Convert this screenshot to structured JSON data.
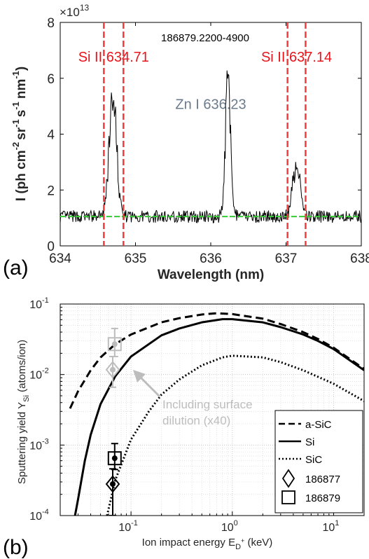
{
  "chart_data": [
    {
      "panel_label": "(a)",
      "type": "line",
      "title": "186879.2200-4900",
      "xlabel": "Wavelength (nm)",
      "ylabel": "I (ph cm",
      "ylabel_sup1": "-2",
      "ylabel_mid1": "sr",
      "ylabel_sup2": "-1",
      "ylabel_mid2": "s",
      "ylabel_sup3": "-1",
      "ylabel_mid3": "nm",
      "ylabel_sup4": "-1",
      "ylabel_end": ")",
      "multiplier_base": "×10",
      "multiplier_exp": "13",
      "xlim": [
        634,
        638
      ],
      "ylim": [
        0,
        8
      ],
      "xticks": [
        "634",
        "635",
        "636",
        "637",
        "638"
      ],
      "yticks": [
        "0",
        "2",
        "4",
        "6",
        "8"
      ],
      "baseline": 1.05,
      "peaks": [
        {
          "center": 634.7,
          "height": 5.4,
          "width": 0.07
        },
        {
          "center": 636.23,
          "height": 5.85,
          "width": 0.05
        },
        {
          "center": 637.14,
          "height": 2.9,
          "width": 0.07
        }
      ],
      "vlines": [
        634.58,
        634.84,
        637.02,
        637.26
      ],
      "annotations": [
        {
          "text": "Si II 634.71",
          "x": 634.71,
          "y": 6.6,
          "color": "#e8141c"
        },
        {
          "text": "Zn I 636.23",
          "x": 636.0,
          "y": 4.9,
          "color": "#6b7b8c"
        },
        {
          "text": "Si II 637.14",
          "x": 637.14,
          "y": 6.6,
          "color": "#e8141c"
        }
      ],
      "colors": {
        "spectrum": "#000000",
        "vline": "#f03c3c",
        "baseline": "#33cc33"
      }
    },
    {
      "panel_label": "(b)",
      "type": "line",
      "xlabel": "Ion impact energy  E",
      "xlabel_sub": "D",
      "xlabel_supsub": "+",
      "xlabel_end": " (keV)",
      "ylabel": "Sputtering yield  Y",
      "ylabel_sub": "Si",
      "ylabel_end": " (atoms/ion)",
      "xscale": "log",
      "yscale": "log",
      "xlim": [
        0.02,
        20
      ],
      "ylim": [
        0.0001,
        0.1
      ],
      "grid": true,
      "legend_position": "bottom-right",
      "xticks": [
        {
          "base": "10",
          "exp": "-1"
        },
        {
          "base": "10",
          "exp": "0"
        },
        {
          "base": "10",
          "exp": "1"
        }
      ],
      "yticks": [
        {
          "base": "10",
          "exp": "-4"
        },
        {
          "base": "10",
          "exp": "-3"
        },
        {
          "base": "10",
          "exp": "-2"
        },
        {
          "base": "10",
          "exp": "-1"
        }
      ],
      "series": [
        {
          "name": "a-SiC",
          "style": "dashed",
          "x": [
            0.025,
            0.03,
            0.04,
            0.05,
            0.07,
            0.1,
            0.2,
            0.3,
            0.5,
            0.7,
            1,
            2,
            3,
            5,
            7,
            10,
            20
          ],
          "y": [
            0.0033,
            0.0058,
            0.0115,
            0.0175,
            0.027,
            0.037,
            0.055,
            0.063,
            0.071,
            0.074,
            0.072,
            0.062,
            0.052,
            0.04,
            0.032,
            0.024,
            0.012
          ]
        },
        {
          "name": "Si",
          "style": "solid",
          "x": [
            0.028,
            0.03,
            0.035,
            0.04,
            0.05,
            0.07,
            0.1,
            0.2,
            0.3,
            0.5,
            0.8,
            1,
            2,
            3,
            5,
            7,
            10,
            20
          ],
          "y": [
            0.0001,
            0.00017,
            0.0006,
            0.0014,
            0.0038,
            0.0095,
            0.018,
            0.036,
            0.045,
            0.055,
            0.061,
            0.061,
            0.055,
            0.047,
            0.037,
            0.03,
            0.023,
            0.0115
          ]
        },
        {
          "name": "SiC",
          "style": "dotted",
          "x": [
            0.058,
            0.07,
            0.1,
            0.15,
            0.2,
            0.3,
            0.5,
            0.8,
            1,
            2,
            3,
            5,
            7,
            10,
            20
          ],
          "y": [
            0.0001,
            0.00032,
            0.0012,
            0.003,
            0.0052,
            0.0085,
            0.0135,
            0.0175,
            0.0185,
            0.0175,
            0.015,
            0.0115,
            0.0093,
            0.0074,
            0.0042
          ]
        }
      ],
      "markers": [
        {
          "name": "186877",
          "shape": "diamond",
          "x": 0.066,
          "y": 0.00028,
          "ylow": 0.0001,
          "yhigh": 0.00046,
          "color": "#000000"
        },
        {
          "name": "186879",
          "shape": "square",
          "x": 0.069,
          "y": 0.00065,
          "ylow": 0.00045,
          "yhigh": 0.00105,
          "color": "#000000"
        },
        {
          "name": "",
          "shape": "diamond",
          "x": 0.066,
          "y": 0.0117,
          "ylow": 0.0066,
          "yhigh": 0.018,
          "color": "#bdbdbd"
        },
        {
          "name": "",
          "shape": "square",
          "x": 0.069,
          "y": 0.027,
          "ylow": 0.018,
          "yhigh": 0.045,
          "color": "#bdbdbd"
        }
      ],
      "annotation": {
        "line1": "Including surface",
        "line2": "dilution (x40)",
        "color": "#bdbdbd"
      }
    }
  ]
}
